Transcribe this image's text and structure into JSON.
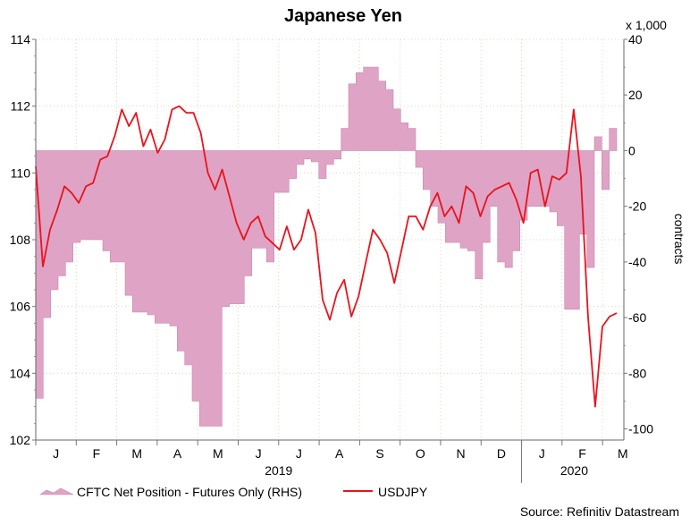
{
  "chart_data": {
    "type": "line+area",
    "title": "Japanese Yen",
    "source": "Source: Refinitiv Datastream",
    "x_axis": {
      "month_labels": [
        "J",
        "F",
        "M",
        "A",
        "M",
        "J",
        "J",
        "A",
        "S",
        "O",
        "N",
        "D",
        "J",
        "F",
        "M"
      ],
      "year_labels": [
        "2019",
        "2020"
      ],
      "range_weeks": [
        0,
        62
      ]
    },
    "left_axis": {
      "label": "",
      "ylim": [
        102,
        114
      ],
      "ticks": [
        "102",
        "104",
        "106",
        "108",
        "110",
        "112",
        "114"
      ]
    },
    "right_axis": {
      "label": "contracts",
      "multiplier": "x 1,000",
      "ylim": [
        -104,
        40
      ],
      "ticks": [
        "-100",
        "-80",
        "-60",
        "-40",
        "-20",
        "0",
        "20",
        "40"
      ]
    },
    "series": [
      {
        "name": "CFTC Net Position - Futures Only (RHS)",
        "type": "area",
        "axis": "right",
        "color": "#dfa3c5",
        "x_step": "weekly",
        "values": [
          -89,
          -60,
          -50,
          -45,
          -40,
          -33,
          -32,
          -32,
          -32,
          -36,
          -40,
          -40,
          -52,
          -58,
          -58,
          -59,
          -62,
          -62,
          -63,
          -72,
          -77,
          -90,
          -99,
          -99,
          -99,
          -56,
          -55,
          -55,
          -45,
          -35,
          -35,
          -40,
          -15,
          -15,
          -10,
          -5,
          -3,
          -4,
          -10,
          -5,
          -3,
          8,
          24,
          28,
          30,
          30,
          25,
          22,
          15,
          10,
          8,
          -6,
          -14,
          -20,
          -26,
          -33,
          -33,
          -35,
          -36,
          -46,
          -33,
          -20,
          -40,
          -42,
          -36,
          -25,
          -20,
          -20,
          -20,
          -22,
          -27,
          -57,
          -57,
          -30,
          -42,
          5,
          -14,
          8
        ]
      },
      {
        "name": "USDJPY",
        "type": "line",
        "axis": "left",
        "color": "#e8141c",
        "x_step": "weekly",
        "values": [
          110.2,
          107.2,
          108.3,
          108.9,
          109.6,
          109.4,
          109.1,
          109.6,
          109.7,
          110.4,
          110.5,
          111.1,
          111.9,
          111.4,
          111.8,
          110.8,
          111.3,
          110.6,
          111.0,
          111.9,
          112.0,
          111.8,
          111.8,
          111.2,
          110.0,
          109.5,
          110.1,
          109.3,
          108.5,
          108.0,
          108.5,
          108.7,
          108.1,
          107.9,
          107.7,
          108.4,
          107.7,
          108.0,
          108.9,
          108.2,
          106.2,
          105.6,
          106.4,
          106.8,
          105.7,
          106.3,
          107.3,
          108.3,
          108.0,
          107.6,
          106.7,
          107.7,
          108.7,
          108.7,
          108.3,
          109.0,
          109.4,
          108.7,
          109.0,
          108.5,
          109.6,
          109.4,
          108.7,
          109.3,
          109.5,
          109.6,
          109.7,
          109.2,
          108.5,
          110.0,
          110.1,
          109.0,
          109.9,
          109.8,
          110.0,
          111.9,
          109.9,
          105.7,
          103.0,
          105.4,
          105.7,
          105.8
        ]
      }
    ],
    "legend": [
      {
        "label": "CFTC Net Position - Futures Only (RHS)",
        "icon": "area-swatch"
      },
      {
        "label": "USDJPY",
        "icon": "line-swatch"
      }
    ]
  }
}
